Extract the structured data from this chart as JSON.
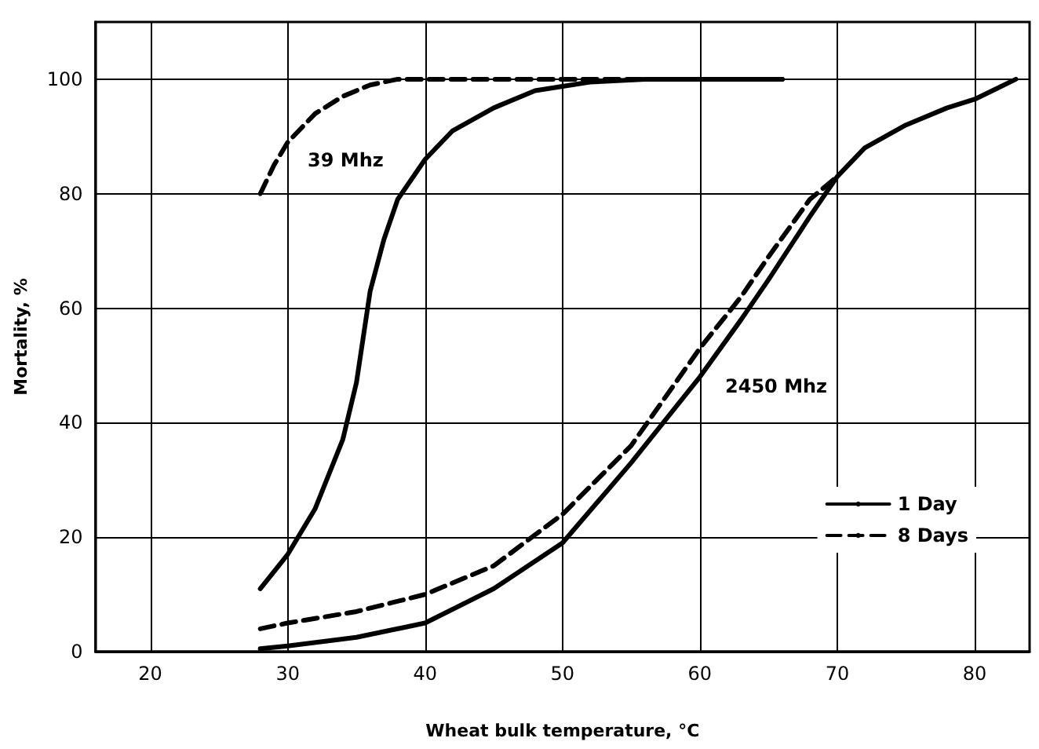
{
  "chart_data": {
    "type": "line",
    "xlabel": "Wheat bulk temperature, °C",
    "ylabel": "Mortality, %",
    "xlim": [
      16,
      84
    ],
    "xticks": [
      20,
      30,
      40,
      50,
      60,
      70,
      80
    ],
    "ylim": [
      0,
      110
    ],
    "yticks": [
      0,
      20,
      40,
      60,
      80,
      100
    ],
    "grid": true,
    "legend": "right",
    "marker": "none",
    "series": [
      {
        "name": "1 Day",
        "color": "#000000",
        "line_style": "solid",
        "x": [
          28,
          30,
          32,
          34,
          35,
          35.5,
          36,
          37,
          38,
          40,
          42,
          45,
          48,
          52,
          56,
          66
        ],
        "values": [
          11,
          17,
          25,
          37,
          47,
          55,
          63,
          72,
          79,
          86,
          91,
          95,
          98,
          99.5,
          100,
          100
        ]
      },
      {
        "name": "8 Days",
        "color": "#000000",
        "line_style": "dashed",
        "x": [
          28,
          29,
          30,
          32,
          34,
          36,
          38,
          40,
          66
        ],
        "values": [
          80,
          85,
          89,
          94,
          97,
          99,
          100,
          100,
          100
        ]
      },
      {
        "color": "#000000",
        "line_style": "solid",
        "x": [
          28,
          30,
          35,
          40,
          45,
          50,
          55,
          60,
          63,
          65,
          68,
          70,
          72,
          75,
          78,
          80,
          83
        ],
        "values": [
          0.5,
          1,
          2.5,
          5,
          11,
          19,
          33,
          48,
          58,
          65,
          76,
          83,
          88,
          92,
          95,
          96.5,
          100
        ]
      },
      {
        "color": "#000000",
        "line_style": "dashed",
        "x": [
          28,
          30,
          35,
          40,
          45,
          50,
          55,
          60,
          63,
          65,
          68,
          70
        ],
        "values": [
          4,
          5,
          7,
          10,
          15,
          24,
          36,
          53,
          62,
          69,
          79,
          83
        ]
      }
    ],
    "annotations": [
      "39 Mhz",
      "2450 Mhz"
    ]
  }
}
